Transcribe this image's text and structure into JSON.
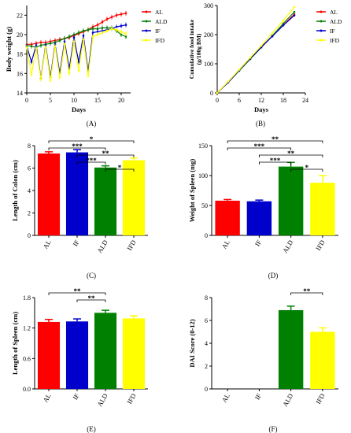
{
  "colors": {
    "AL": "#ff0000",
    "ALD": "#008000",
    "IF": "#0000cc",
    "IFD": "#ffff00"
  },
  "chart_data": [
    {
      "id": "A",
      "type": "line",
      "panel_label": "(A)",
      "xlabel": "Days",
      "ylabel": "Body weight (g)",
      "xlim": [
        0,
        22
      ],
      "ylim": [
        14,
        23
      ],
      "xticks": [
        0,
        5,
        10,
        15,
        20
      ],
      "yticks": [
        14,
        16,
        18,
        20,
        22
      ],
      "legend_position": "right",
      "legend": [
        "AL",
        "ALD",
        "IF",
        "IFD"
      ],
      "series": [
        {
          "name": "AL",
          "color": "#ff0000",
          "x": [
            0,
            1,
            2,
            3,
            4,
            5,
            6,
            7,
            8,
            9,
            10,
            11,
            12,
            13,
            14,
            15,
            16,
            17,
            18,
            19,
            20,
            21
          ],
          "y": [
            19.0,
            19.0,
            19.1,
            19.2,
            19.2,
            19.3,
            19.4,
            19.5,
            19.6,
            19.7,
            19.9,
            20.1,
            20.3,
            20.5,
            20.8,
            21.0,
            21.3,
            21.6,
            21.8,
            22.0,
            22.1,
            22.2
          ]
        },
        {
          "name": "ALD",
          "color": "#008000",
          "x": [
            0,
            1,
            2,
            3,
            4,
            5,
            6,
            7,
            8,
            9,
            10,
            11,
            12,
            13,
            14,
            15,
            16,
            17,
            18,
            19,
            20,
            21
          ],
          "y": [
            18.9,
            18.8,
            18.7,
            18.9,
            19.0,
            19.1,
            19.2,
            19.4,
            19.6,
            19.8,
            20.0,
            20.2,
            20.4,
            20.5,
            20.6,
            20.6,
            20.7,
            20.7,
            20.7,
            20.4,
            20.0,
            19.8
          ]
        },
        {
          "name": "IF",
          "color": "#0000cc",
          "x": [
            0,
            1,
            2,
            3,
            4,
            5,
            6,
            7,
            8,
            9,
            10,
            11,
            12,
            13,
            14,
            15,
            16,
            17,
            18,
            19,
            20,
            21
          ],
          "y": [
            18.8,
            17.2,
            18.9,
            15.5,
            18.9,
            15.6,
            19.0,
            16.0,
            19.3,
            16.5,
            19.7,
            17.2,
            19.9,
            16.2,
            20.2,
            20.3,
            20.4,
            20.5,
            20.6,
            20.8,
            20.9,
            21.0
          ]
        },
        {
          "name": "IFD",
          "color": "#ffff00",
          "x": [
            0,
            1,
            2,
            3,
            4,
            5,
            6,
            7,
            8,
            9,
            10,
            11,
            12,
            13,
            14,
            15,
            16,
            17,
            18,
            19,
            20,
            21
          ],
          "y": [
            18.7,
            15.9,
            18.6,
            15.4,
            18.7,
            15.3,
            18.8,
            15.6,
            19.0,
            16.0,
            19.3,
            16.3,
            19.5,
            15.8,
            19.8,
            20.0,
            20.2,
            20.4,
            20.6,
            20.5,
            20.3,
            20.1
          ]
        }
      ]
    },
    {
      "id": "B",
      "type": "line",
      "panel_label": "(B)",
      "xlabel": "Days",
      "ylabel_lines": [
        "Cumulative food intake",
        "(g/100g BM)"
      ],
      "xlim": [
        0,
        24
      ],
      "ylim": [
        0,
        300
      ],
      "xticks": [
        0,
        6,
        12,
        18,
        24
      ],
      "yticks": [
        0,
        100,
        200,
        300
      ],
      "legend_position": "right",
      "legend": [
        "AL",
        "ALD",
        "IF",
        "IFD"
      ],
      "series": [
        {
          "name": "AL",
          "color": "#ff0000",
          "x": [
            0,
            3,
            6,
            9,
            12,
            15,
            18,
            21
          ],
          "y": [
            0,
            38,
            78,
            118,
            158,
            195,
            233,
            270
          ]
        },
        {
          "name": "ALD",
          "color": "#008000",
          "x": [
            0,
            3,
            6,
            9,
            12,
            15,
            18,
            21
          ],
          "y": [
            0,
            36,
            76,
            116,
            156,
            196,
            238,
            278
          ]
        },
        {
          "name": "IF",
          "color": "#0000cc",
          "x": [
            0,
            3,
            6,
            9,
            12,
            15,
            18,
            21
          ],
          "y": [
            0,
            36,
            78,
            118,
            157,
            194,
            232,
            266
          ]
        },
        {
          "name": "IFD",
          "color": "#ffff00",
          "x": [
            0,
            3,
            6,
            9,
            12,
            15,
            18,
            21
          ],
          "y": [
            0,
            39,
            80,
            121,
            162,
            205,
            248,
            295
          ]
        }
      ]
    },
    {
      "id": "C",
      "type": "bar",
      "panel_label": "(C)",
      "ylabel": "Length of Colon (cm)",
      "categories": [
        "AL",
        "IF",
        "ALD",
        "IFD"
      ],
      "values": [
        7.3,
        7.4,
        6.05,
        6.7
      ],
      "errors": [
        0.15,
        0.25,
        0.15,
        0.2
      ],
      "ylim": [
        0,
        8
      ],
      "yticks": [
        0,
        2,
        4,
        6,
        8
      ],
      "significance": [
        {
          "from": "AL",
          "to": "IFD",
          "label": "*",
          "level": 0
        },
        {
          "from": "AL",
          "to": "ALD",
          "label": "***",
          "level": 1
        },
        {
          "from": "IF",
          "to": "IFD",
          "label": "**",
          "level": 2
        },
        {
          "from": "IF",
          "to": "ALD",
          "label": "***",
          "level": 3
        },
        {
          "from": "ALD",
          "to": "IFD",
          "label": "*",
          "level": 4
        }
      ]
    },
    {
      "id": "D",
      "type": "bar",
      "panel_label": "(D)",
      "ylabel": "Weight of Spleen (mg)",
      "categories": [
        "AL",
        "IF",
        "ALD",
        "IFD"
      ],
      "values": [
        58,
        57,
        115,
        88
      ],
      "errors": [
        2,
        2,
        7,
        12
      ],
      "ylim": [
        0,
        150
      ],
      "yticks": [
        0,
        50,
        100,
        150
      ],
      "significance": [
        {
          "from": "AL",
          "to": "IFD",
          "label": "**",
          "level": 0
        },
        {
          "from": "AL",
          "to": "ALD",
          "label": "***",
          "level": 1
        },
        {
          "from": "IF",
          "to": "IFD",
          "label": "**",
          "level": 2
        },
        {
          "from": "IF",
          "to": "ALD",
          "label": "***",
          "level": 3
        },
        {
          "from": "ALD",
          "to": "IFD",
          "label": "*",
          "level": 4
        }
      ]
    },
    {
      "id": "E",
      "type": "bar",
      "panel_label": "(E)",
      "ylabel": "Length of Spleen (cm)",
      "categories": [
        "AL",
        "IF",
        "ALD",
        "IFD"
      ],
      "values": [
        1.32,
        1.33,
        1.5,
        1.39
      ],
      "errors": [
        0.05,
        0.05,
        0.05,
        0.05
      ],
      "ylim": [
        0,
        1.8
      ],
      "yticks": [
        0.0,
        0.6,
        1.2,
        1.8
      ],
      "tick_labels": [
        "0.0",
        "0.6",
        "1.2",
        "1.8"
      ],
      "significance": [
        {
          "from": "AL",
          "to": "ALD",
          "label": "**",
          "level": 0
        },
        {
          "from": "IF",
          "to": "ALD",
          "label": "**",
          "level": 1
        }
      ]
    },
    {
      "id": "F",
      "type": "bar",
      "panel_label": "(F)",
      "ylabel": "DAI Score (0-12)",
      "categories": [
        "AL",
        "IF",
        "ALD",
        "IFD"
      ],
      "values": [
        0,
        0,
        6.9,
        5.0
      ],
      "errors": [
        0,
        0,
        0.35,
        0.35
      ],
      "ylim": [
        0,
        8
      ],
      "yticks": [
        0,
        2,
        4,
        6,
        8
      ],
      "significance": [
        {
          "from": "ALD",
          "to": "IFD",
          "label": "**",
          "level": 0
        }
      ]
    }
  ]
}
